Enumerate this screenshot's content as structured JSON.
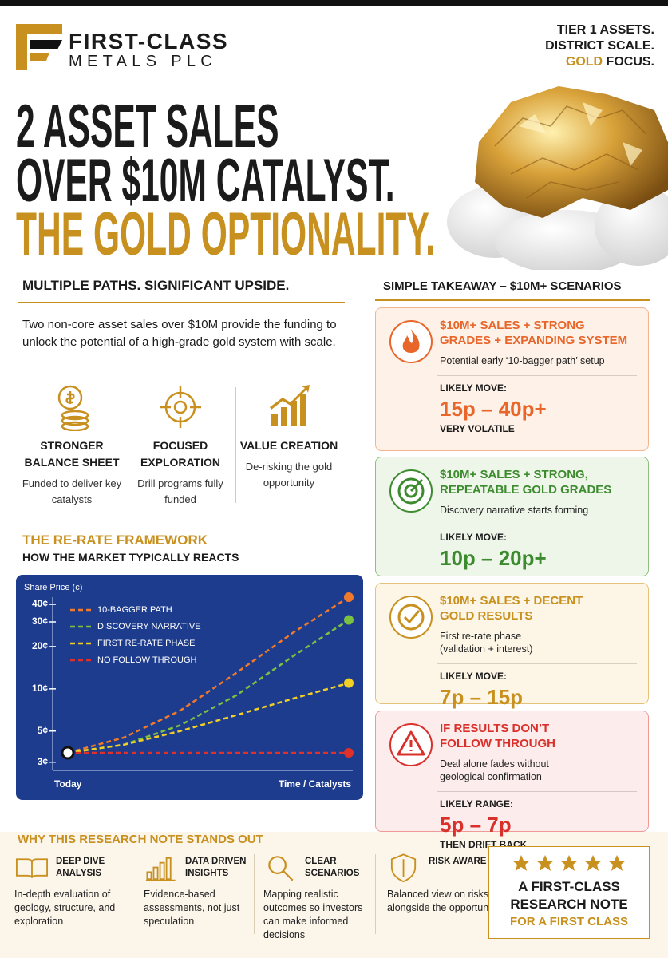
{
  "header": {
    "brand_line1": "FIRST-CLASS",
    "brand_line2": "METALS PLC",
    "tagline_line1": "TIER 1 ASSETS.",
    "tagline_line2": "DISTRICT SCALE.",
    "tagline_gold": "GOLD",
    "tagline_end": "FOCUS."
  },
  "headline": {
    "line1": "2 ASSET SALES",
    "line2": "OVER $10M CATALYST.",
    "line3": "THE GOLD OPTIONALITY."
  },
  "paths": {
    "heading": "MULTIPLE PATHS. SIGNIFICANT UPSIDE.",
    "intro": "Two non-core asset sales over $10M provide the funding to unlock the potential of a high-grade gold system with scale.",
    "pillars": [
      {
        "title": "STRONGER BALANCE SHEET",
        "text": "Funded to deliver key catalysts"
      },
      {
        "title": "FOCUSED EXPLORATION",
        "text": "Drill programs fully funded"
      },
      {
        "title": "VALUE CREATION",
        "text": "De-risking the gold opportunity"
      }
    ]
  },
  "framework": {
    "title": "THE RE-RATE FRAMEWORK",
    "subtitle": "HOW THE MARKET TYPICALLY REACTS"
  },
  "chart_data": {
    "type": "line",
    "y_label": "Share Price (c)",
    "categories": [
      "Today",
      null,
      null,
      null,
      null,
      "Time / Catalysts"
    ],
    "series": [
      {
        "name": "10-BAGGER PATH",
        "color": "#f07a2a",
        "values": [
          3.5,
          4.5,
          7,
          13,
          25,
          45
        ]
      },
      {
        "name": "DISCOVERY NARRATIVE",
        "color": "#7cc242",
        "values": [
          3.5,
          4,
          5.5,
          9,
          17,
          31
        ]
      },
      {
        "name": "FIRST RE-RATE PHASE",
        "color": "#f2d024",
        "values": [
          3.5,
          4,
          5,
          6.5,
          8.5,
          11
        ]
      },
      {
        "name": "NO FOLLOW THROUGH",
        "color": "#e0302a",
        "values": [
          3.5,
          3.5,
          3.5,
          3.5,
          3.5,
          3.5
        ]
      }
    ],
    "log_scale": true,
    "line_style": "dashed",
    "grid": false,
    "legend": "upper-left",
    "ylim": [
      2.8,
      50
    ],
    "yticks": [
      {
        "value": 3,
        "label": "3¢"
      },
      {
        "value": 5,
        "label": "5¢"
      },
      {
        "value": 10,
        "label": "10¢"
      },
      {
        "value": 20,
        "label": "20¢"
      },
      {
        "value": 30,
        "label": "30¢"
      },
      {
        "value": 40,
        "label": "40¢"
      }
    ]
  },
  "scenarios": {
    "heading": "SIMPLE TAKEAWAY – $10M+ SCENARIOS",
    "cards": [
      {
        "title": "$10M+ SALES + STRONG GRADES + EXPANDING SYSTEM",
        "description": "Potential early ‘10-bagger path’ setup",
        "move_label": "LIKELY MOVE:",
        "move": "15p – 40p+",
        "note": "VERY VOLATILE"
      },
      {
        "title": "$10M+ SALES + STRONG, REPEATABLE GOLD GRADES",
        "description": "Discovery narrative starts forming",
        "move_label": "LIKELY MOVE:",
        "move": "10p – 20p+"
      },
      {
        "title": "$10M+ SALES + DECENT GOLD RESULTS",
        "description": "First re-rate phase (validation + interest)",
        "move_label": "LIKELY MOVE:",
        "move": "7p – 15p"
      },
      {
        "title": "IF RESULTS DON’T FOLLOW THROUGH",
        "description": "Deal alone fades without geological confirmation",
        "move_label": "LIKELY RANGE:",
        "move": "5p – 7p",
        "note": "THEN DRIFT BACK"
      }
    ]
  },
  "why": {
    "heading": "WHY THIS RESEARCH NOTE STANDS OUT",
    "items": [
      {
        "title": "DEEP DIVE ANALYSIS",
        "text": "In-depth evaluation of geology, structure, and exploration"
      },
      {
        "title": "DATA DRIVEN INSIGHTS",
        "text": "Evidence-based assessments, not just speculation"
      },
      {
        "title": "CLEAR SCENARIOS",
        "text": "Mapping realistic outcomes so investors can make informed decisions"
      },
      {
        "title": "RISK AWARE",
        "text": "Balanced view on risks alongside the opportunity"
      }
    ],
    "badge": {
      "line1": "A FIRST-CLASS",
      "line2": "RESEARCH NOTE",
      "line3": "FOR A FIRST CLASS"
    }
  }
}
